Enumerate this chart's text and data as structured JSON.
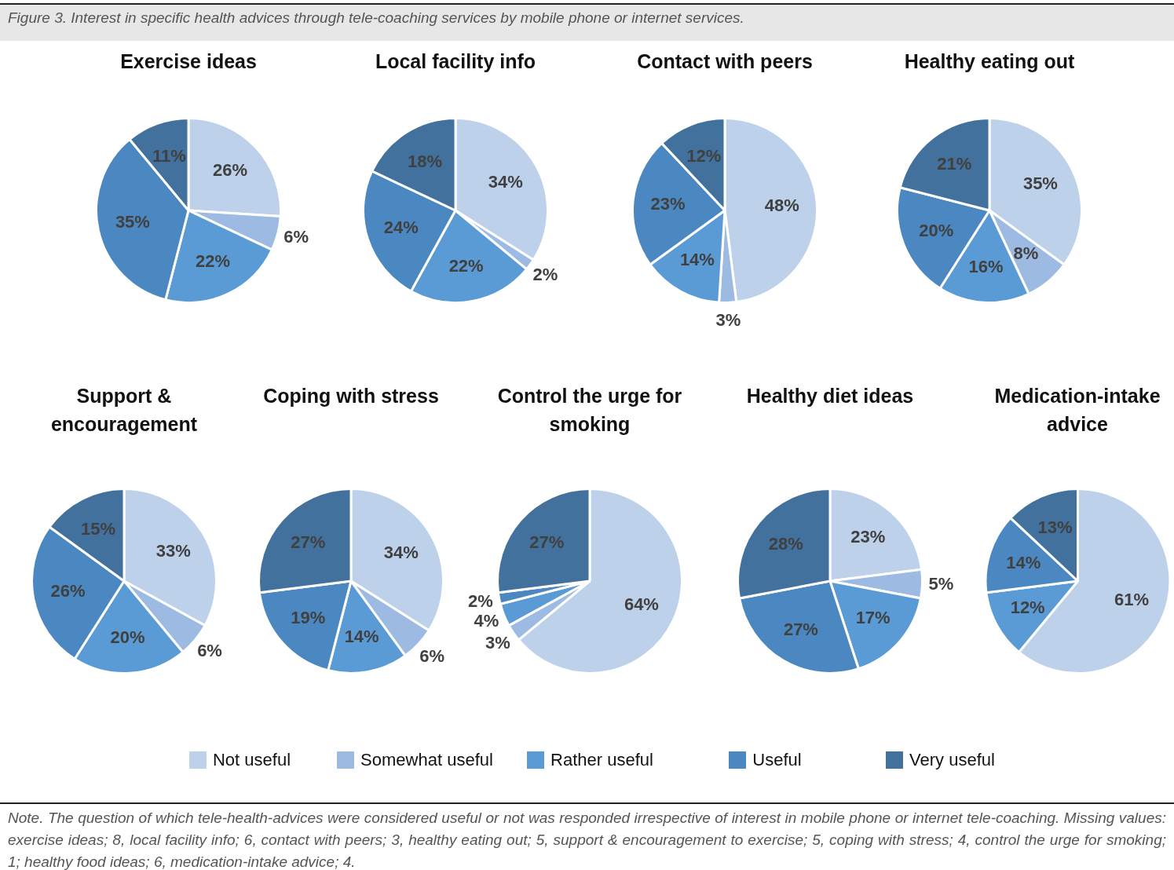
{
  "chart_data": [
    {
      "type": "pie",
      "title": "Exercise ideas",
      "categories": [
        "Not useful",
        "Somewhat useful",
        "Rather useful",
        "Useful",
        "Very useful"
      ],
      "values": [
        26,
        6,
        22,
        35,
        11
      ],
      "value_labels": [
        "26%",
        "6%",
        "22%",
        "35%",
        "11%"
      ],
      "colors": [
        "#bdd1ea",
        "#9dbbe2",
        "#5b9bd5",
        "#4b87c0",
        "#41719c"
      ],
      "legend": "bottom",
      "annotations": [
        "Figure 3. Interest in specific health advices through tele-coaching services by mobile phone or internet services.",
        "Note. The question of which tele-health-advices were considered useful or not was responded irrespective of interest in mobile phone or internet tele-coaching. Missing values: exercise ideas; 8, local facility info; 6, contact with peers; 3, healthy eating out; 5, support & encouragement to exercise; 5, coping with stress; 4, control the urge for smoking; 1; healthy food ideas; 6, medication-intake advice; 4."
      ]
    },
    {
      "type": "pie",
      "title": "Local facility info",
      "values": [
        34,
        2,
        22,
        24,
        18
      ],
      "value_labels": [
        "34%",
        "2%",
        "22%",
        "24%",
        "18%"
      ],
      "colors": [
        "#bdd1ea",
        "#9dbbe2",
        "#5b9bd5",
        "#4b87c0",
        "#41719c"
      ]
    },
    {
      "type": "pie",
      "title": "Contact with peers",
      "values": [
        48,
        3,
        14,
        23,
        12
      ],
      "value_labels": [
        "48%",
        "3%",
        "14%",
        "23%",
        "12%"
      ],
      "colors": [
        "#bdd1ea",
        "#9dbbe2",
        "#5b9bd5",
        "#4b87c0",
        "#41719c"
      ]
    },
    {
      "type": "pie",
      "title": "Healthy eating out",
      "values": [
        35,
        8,
        16,
        20,
        21
      ],
      "value_labels": [
        "35%",
        "8%",
        "16%",
        "20%",
        "21%"
      ],
      "colors": [
        "#bdd1ea",
        "#9dbbe2",
        "#5b9bd5",
        "#4b87c0",
        "#41719c"
      ]
    },
    {
      "type": "pie",
      "title": "Support & encouragement",
      "values": [
        33,
        6,
        20,
        26,
        15
      ],
      "value_labels": [
        "33%",
        "6%",
        "20%",
        "26%",
        "15%"
      ],
      "colors": [
        "#bdd1ea",
        "#9dbbe2",
        "#5b9bd5",
        "#4b87c0",
        "#41719c"
      ]
    },
    {
      "type": "pie",
      "title": "Coping with stress",
      "values": [
        34,
        6,
        14,
        19,
        27
      ],
      "value_labels": [
        "34%",
        "6%",
        "14%",
        "19%",
        "27%"
      ],
      "colors": [
        "#bdd1ea",
        "#9dbbe2",
        "#5b9bd5",
        "#4b87c0",
        "#41719c"
      ]
    },
    {
      "type": "pie",
      "title": "Control the urge for smoking",
      "values": [
        64,
        3,
        4,
        2,
        27
      ],
      "value_labels": [
        "64%",
        "3%",
        "4%",
        "2%",
        "27%"
      ],
      "colors": [
        "#bdd1ea",
        "#9dbbe2",
        "#5b9bd5",
        "#4b87c0",
        "#41719c"
      ]
    },
    {
      "type": "pie",
      "title": "Healthy diet ideas",
      "values": [
        23,
        5,
        17,
        27,
        28
      ],
      "value_labels": [
        "23%",
        "5%",
        "17%",
        "27%",
        "28%"
      ],
      "colors": [
        "#bdd1ea",
        "#9dbbe2",
        "#5b9bd5",
        "#4b87c0",
        "#41719c"
      ]
    },
    {
      "type": "pie",
      "title": "Medication-intake advice",
      "values": [
        61,
        0,
        12,
        14,
        13
      ],
      "value_labels": [
        "61%",
        null,
        "12%",
        "14%",
        "13%"
      ],
      "colors": [
        "#bdd1ea",
        "#9dbbe2",
        "#5b9bd5",
        "#4b87c0",
        "#41719c"
      ]
    }
  ]
}
